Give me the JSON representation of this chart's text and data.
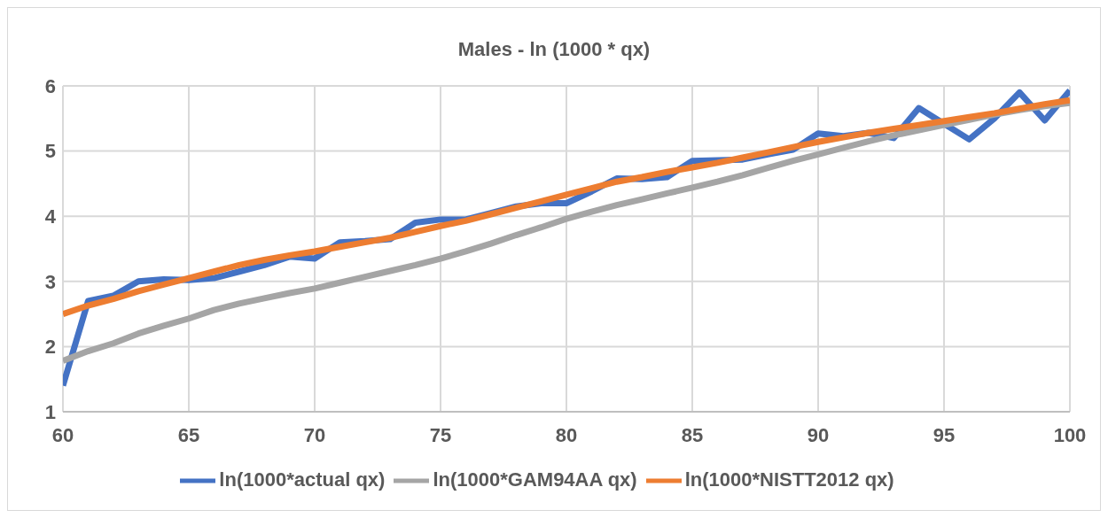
{
  "chart_data": {
    "type": "line",
    "title": "Males - ln (1000 * qx)",
    "x": [
      60,
      61,
      62,
      63,
      64,
      65,
      66,
      67,
      68,
      69,
      70,
      71,
      72,
      73,
      74,
      75,
      76,
      77,
      78,
      79,
      80,
      81,
      82,
      83,
      84,
      85,
      86,
      87,
      88,
      89,
      90,
      91,
      92,
      93,
      94,
      95,
      96,
      97,
      98,
      99,
      100
    ],
    "series": [
      {
        "name": "ln(1000*actual qx)",
        "color": "#4472c4",
        "values": [
          1.4,
          2.7,
          2.78,
          3.0,
          3.03,
          3.02,
          3.05,
          3.15,
          3.25,
          3.38,
          3.35,
          3.6,
          3.62,
          3.65,
          3.9,
          3.95,
          3.95,
          4.05,
          4.15,
          4.2,
          4.2,
          4.38,
          4.58,
          4.57,
          4.6,
          4.85,
          4.86,
          4.87,
          4.95,
          5.02,
          5.27,
          5.23,
          5.28,
          5.2,
          5.66,
          5.42,
          5.18,
          5.5,
          5.9,
          5.47,
          5.93
        ]
      },
      {
        "name": "ln(1000*GAM94AA qx)",
        "color": "#a5a5a5",
        "values": [
          1.78,
          1.93,
          2.05,
          2.2,
          2.32,
          2.43,
          2.56,
          2.66,
          2.74,
          2.82,
          2.89,
          2.98,
          3.07,
          3.16,
          3.25,
          3.35,
          3.46,
          3.58,
          3.71,
          3.83,
          3.96,
          4.07,
          4.17,
          4.26,
          4.35,
          4.44,
          4.53,
          4.63,
          4.74,
          4.85,
          4.95,
          5.05,
          5.15,
          5.24,
          5.32,
          5.4,
          5.48,
          5.56,
          5.63,
          5.69,
          5.74
        ]
      },
      {
        "name": "ln(1000*NISTT2012 qx)",
        "color": "#ed7d31",
        "values": [
          2.5,
          2.63,
          2.73,
          2.85,
          2.95,
          3.05,
          3.15,
          3.25,
          3.33,
          3.4,
          3.46,
          3.53,
          3.6,
          3.67,
          3.76,
          3.85,
          3.93,
          4.03,
          4.13,
          4.23,
          4.33,
          4.43,
          4.53,
          4.6,
          4.68,
          4.75,
          4.82,
          4.9,
          4.98,
          5.06,
          5.14,
          5.21,
          5.28,
          5.34,
          5.4,
          5.46,
          5.52,
          5.58,
          5.65,
          5.72,
          5.78
        ]
      }
    ],
    "xlim": [
      60,
      100
    ],
    "xticks": [
      60,
      65,
      70,
      75,
      80,
      85,
      90,
      95,
      100
    ],
    "ylim": [
      1,
      6
    ],
    "yticks": [
      1,
      2,
      3,
      4,
      5,
      6
    ],
    "grid": true,
    "legend": "bottom",
    "marker": "none",
    "line_style": "solid"
  }
}
